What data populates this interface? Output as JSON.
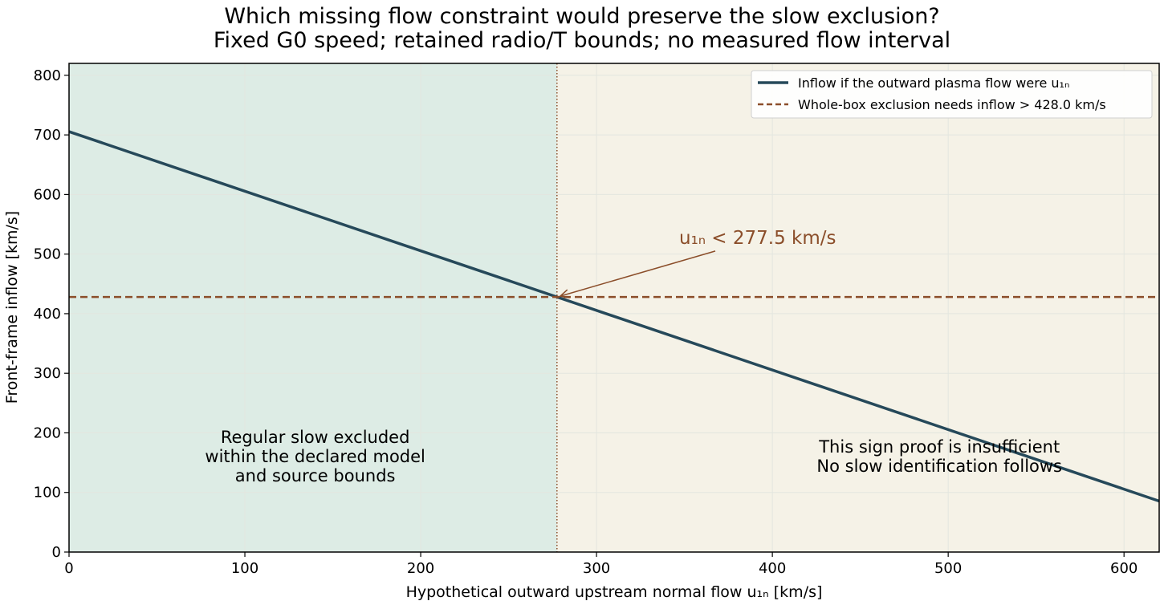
{
  "chart_data": {
    "type": "line",
    "title": [
      "Which missing flow constraint would preserve the slow exclusion?",
      "Fixed G0 speed; retained radio/T bounds; no measured flow interval"
    ],
    "xlabel": "Hypothetical outward upstream normal flow u₁ₙ [km/s]",
    "ylabel": "Front-frame inflow [km/s]",
    "xlim": [
      0,
      620
    ],
    "ylim": [
      0,
      820
    ],
    "x_ticks": [
      0,
      100,
      200,
      300,
      400,
      500,
      600
    ],
    "y_ticks": [
      0,
      100,
      200,
      300,
      400,
      500,
      600,
      700,
      800
    ],
    "grid": true,
    "legend_position": "top-right",
    "series": [
      {
        "name": "Inflow if the outward plasma flow were u₁ₙ",
        "x": [
          0,
          620
        ],
        "y": [
          705.5,
          85.5
        ],
        "color": "#26495a",
        "style": "solid"
      },
      {
        "name": "Whole-box exclusion needs inflow > 428.0 km/s",
        "x": [
          0,
          620
        ],
        "y": [
          428.0,
          428.0
        ],
        "color": "#8b4e2a",
        "style": "dashed"
      }
    ],
    "threshold_x": 277.5,
    "annotation": {
      "text": "u₁ₙ < 277.5 km/s",
      "point": [
        277.5,
        428.0
      ],
      "text_at": [
        347,
        528
      ]
    },
    "regions": [
      {
        "range": [
          0,
          277.5
        ],
        "color": "#ddece5",
        "lines": [
          "Regular slow excluded",
          "within the declared model",
          "and source bounds"
        ],
        "label_at": [
          140,
          160
        ]
      },
      {
        "range": [
          277.5,
          620
        ],
        "color": "#f5f2e7",
        "lines": [
          "This sign proof is insufficient",
          "No slow identification follows"
        ],
        "label_at": [
          495,
          160
        ]
      }
    ]
  },
  "colors": {
    "line": "#26495a",
    "threshold": "#8b4e2a",
    "grid": "#e3e6df"
  }
}
